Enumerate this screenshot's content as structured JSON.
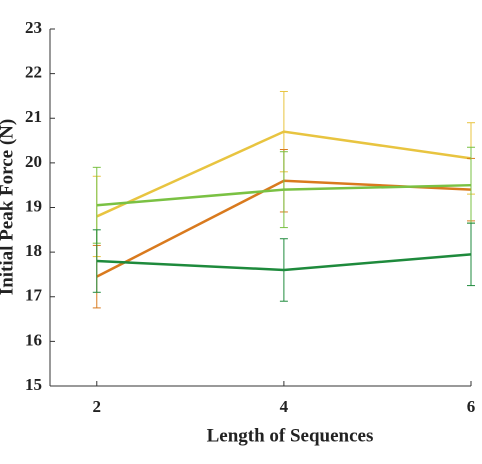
{
  "chart_data": {
    "type": "line",
    "xlabel": "Length of Sequences",
    "ylabel": "Initial Peak Force (N)",
    "x": [
      2,
      4,
      6
    ],
    "xlim": [
      1.5,
      6
    ],
    "xticks": [
      2,
      4,
      6
    ],
    "ylim": [
      15,
      23
    ],
    "yticks": [
      15,
      16,
      17,
      18,
      19,
      20,
      21,
      22,
      23
    ],
    "series": [
      {
        "color": "#e8c440",
        "values": [
          18.8,
          20.7,
          20.1
        ],
        "errors": [
          0.9,
          0.9,
          0.8
        ]
      },
      {
        "color": "#d97a1e",
        "values": [
          17.45,
          19.6,
          19.4
        ],
        "errors": [
          0.7,
          0.7,
          0.7
        ]
      },
      {
        "color": "#7ac143",
        "values": [
          19.05,
          19.4,
          19.5
        ],
        "errors": [
          0.85,
          0.85,
          0.85
        ]
      },
      {
        "color": "#1e8a3c",
        "values": [
          17.8,
          17.6,
          17.95
        ],
        "errors": [
          0.7,
          0.7,
          0.7
        ]
      }
    ]
  }
}
